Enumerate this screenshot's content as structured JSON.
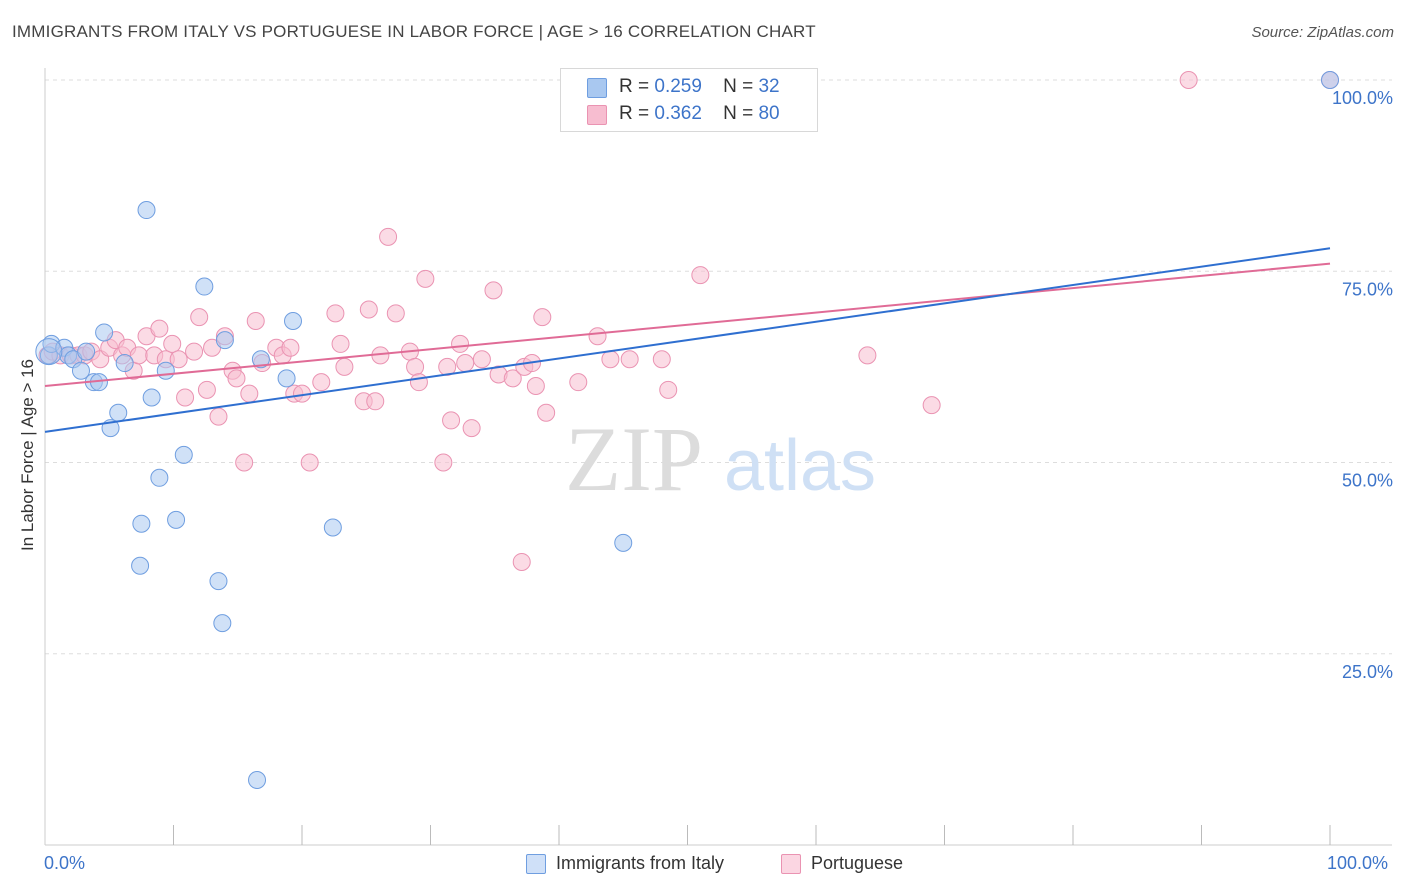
{
  "header": {
    "title": "IMMIGRANTS FROM ITALY VS PORTUGUESE IN LABOR FORCE | AGE > 16 CORRELATION CHART",
    "source": "Source: ZipAtlas.com"
  },
  "legend": {
    "rows": [
      {
        "r_label": "R =",
        "r_value": "0.259",
        "n_label": "N =",
        "n_value": "32"
      },
      {
        "r_label": "R =",
        "r_value": "0.362",
        "n_label": "N =",
        "n_value": "80"
      }
    ]
  },
  "watermark": {
    "zip": "ZIP",
    "atlas": "atlas"
  },
  "colors": {
    "italy_fill": "#a9c8f0",
    "italy_stroke": "#6f9ee0",
    "italy_line": "#2f6fd0",
    "portuguese_fill": "#f7bdd0",
    "portuguese_stroke": "#ea93b2",
    "portuguese_line": "#e06b96",
    "axis_text": "#3d74c9",
    "grid": "#dddddd"
  },
  "chart_data": {
    "type": "scatter",
    "title": "IMMIGRANTS FROM ITALY VS PORTUGUESE IN LABOR FORCE | AGE > 16 CORRELATION CHART",
    "ylabel": "In Labor Force | Age > 16",
    "xlim": [
      0,
      100
    ],
    "ylim": [
      0,
      103
    ],
    "x_tick_labels": [
      "0.0%",
      "100.0%"
    ],
    "y_ticks": [
      25,
      50,
      75,
      100
    ],
    "y_tick_labels": [
      "25.0%",
      "50.0%",
      "75.0%",
      "100.0%"
    ],
    "grid": true,
    "legend_position": "top-center",
    "series": [
      {
        "name": "Immigrants from Italy",
        "color": "#a9c8f0",
        "r": 0.259,
        "n": 32,
        "trend": [
          [
            0,
            54.0
          ],
          [
            100,
            78.0
          ]
        ],
        "points": [
          [
            0.3,
            64.0
          ],
          [
            0.5,
            65.5
          ],
          [
            1.5,
            65.0
          ],
          [
            1.8,
            64.0
          ],
          [
            2.2,
            63.5
          ],
          [
            2.8,
            62.0
          ],
          [
            3.2,
            64.5
          ],
          [
            3.8,
            60.5
          ],
          [
            4.2,
            60.5
          ],
          [
            4.6,
            67.0
          ],
          [
            5.1,
            54.5
          ],
          [
            5.7,
            56.5
          ],
          [
            6.2,
            63.0
          ],
          [
            7.9,
            83.0
          ],
          [
            8.3,
            58.5
          ],
          [
            8.9,
            48.0
          ],
          [
            9.4,
            62.0
          ],
          [
            10.2,
            42.5
          ],
          [
            10.8,
            51.0
          ],
          [
            12.4,
            73.0
          ],
          [
            13.5,
            34.5
          ],
          [
            13.8,
            29.0
          ],
          [
            14.0,
            66.0
          ],
          [
            16.8,
            63.5
          ],
          [
            16.5,
            8.5
          ],
          [
            18.8,
            61.0
          ],
          [
            19.3,
            68.5
          ],
          [
            22.4,
            41.5
          ],
          [
            7.5,
            42.0
          ],
          [
            7.4,
            36.5
          ],
          [
            45.0,
            39.5
          ],
          [
            100.0,
            100.0
          ]
        ]
      },
      {
        "name": "Portuguese",
        "color": "#f7bdd0",
        "r": 0.362,
        "n": 80,
        "trend": [
          [
            0,
            60.0
          ],
          [
            100,
            76.0
          ]
        ],
        "points": [
          [
            0.2,
            64.0
          ],
          [
            0.6,
            64.5
          ],
          [
            1.2,
            64.0
          ],
          [
            2.0,
            64.0
          ],
          [
            2.6,
            64.0
          ],
          [
            3.1,
            64.0
          ],
          [
            3.6,
            64.5
          ],
          [
            4.3,
            63.5
          ],
          [
            5.0,
            65.0
          ],
          [
            5.5,
            66.0
          ],
          [
            6.0,
            64.0
          ],
          [
            6.4,
            65.0
          ],
          [
            6.9,
            62.0
          ],
          [
            7.3,
            64.0
          ],
          [
            7.9,
            66.5
          ],
          [
            8.5,
            64.0
          ],
          [
            8.9,
            67.5
          ],
          [
            9.4,
            63.5
          ],
          [
            9.9,
            65.5
          ],
          [
            10.4,
            63.5
          ],
          [
            10.9,
            58.5
          ],
          [
            11.6,
            64.5
          ],
          [
            12.0,
            69.0
          ],
          [
            12.6,
            59.5
          ],
          [
            13.0,
            65.0
          ],
          [
            13.5,
            56.0
          ],
          [
            14.0,
            66.5
          ],
          [
            14.6,
            62.0
          ],
          [
            14.9,
            61.0
          ],
          [
            15.5,
            50.0
          ],
          [
            15.9,
            59.0
          ],
          [
            16.4,
            68.5
          ],
          [
            16.9,
            63.0
          ],
          [
            18.0,
            65.0
          ],
          [
            18.5,
            64.0
          ],
          [
            19.1,
            65.0
          ],
          [
            19.4,
            59.0
          ],
          [
            20.0,
            59.0
          ],
          [
            20.6,
            50.0
          ],
          [
            21.5,
            60.5
          ],
          [
            22.6,
            69.5
          ],
          [
            23.0,
            65.5
          ],
          [
            23.3,
            62.5
          ],
          [
            24.8,
            58.0
          ],
          [
            25.2,
            70.0
          ],
          [
            25.7,
            58.0
          ],
          [
            26.1,
            64.0
          ],
          [
            26.7,
            79.5
          ],
          [
            27.3,
            69.5
          ],
          [
            28.4,
            64.5
          ],
          [
            28.8,
            62.5
          ],
          [
            29.1,
            60.5
          ],
          [
            29.6,
            74.0
          ],
          [
            31.0,
            50.0
          ],
          [
            31.3,
            62.5
          ],
          [
            31.6,
            55.5
          ],
          [
            32.3,
            65.5
          ],
          [
            32.7,
            63.0
          ],
          [
            33.2,
            54.5
          ],
          [
            34.0,
            63.5
          ],
          [
            34.9,
            72.5
          ],
          [
            35.3,
            61.5
          ],
          [
            36.4,
            61.0
          ],
          [
            37.1,
            37.0
          ],
          [
            37.3,
            62.5
          ],
          [
            37.9,
            63.0
          ],
          [
            38.2,
            60.0
          ],
          [
            38.7,
            69.0
          ],
          [
            39.0,
            56.5
          ],
          [
            41.5,
            60.5
          ],
          [
            43.0,
            66.5
          ],
          [
            44.0,
            63.5
          ],
          [
            45.5,
            63.5
          ],
          [
            48.0,
            63.5
          ],
          [
            48.5,
            59.5
          ],
          [
            51.0,
            74.5
          ],
          [
            64.0,
            64.0
          ],
          [
            69.0,
            57.5
          ],
          [
            89.0,
            100.0
          ],
          [
            100.0,
            100.0
          ]
        ]
      }
    ]
  },
  "axes": {
    "x_left_label": "0.0%",
    "x_right_label": "100.0%"
  }
}
